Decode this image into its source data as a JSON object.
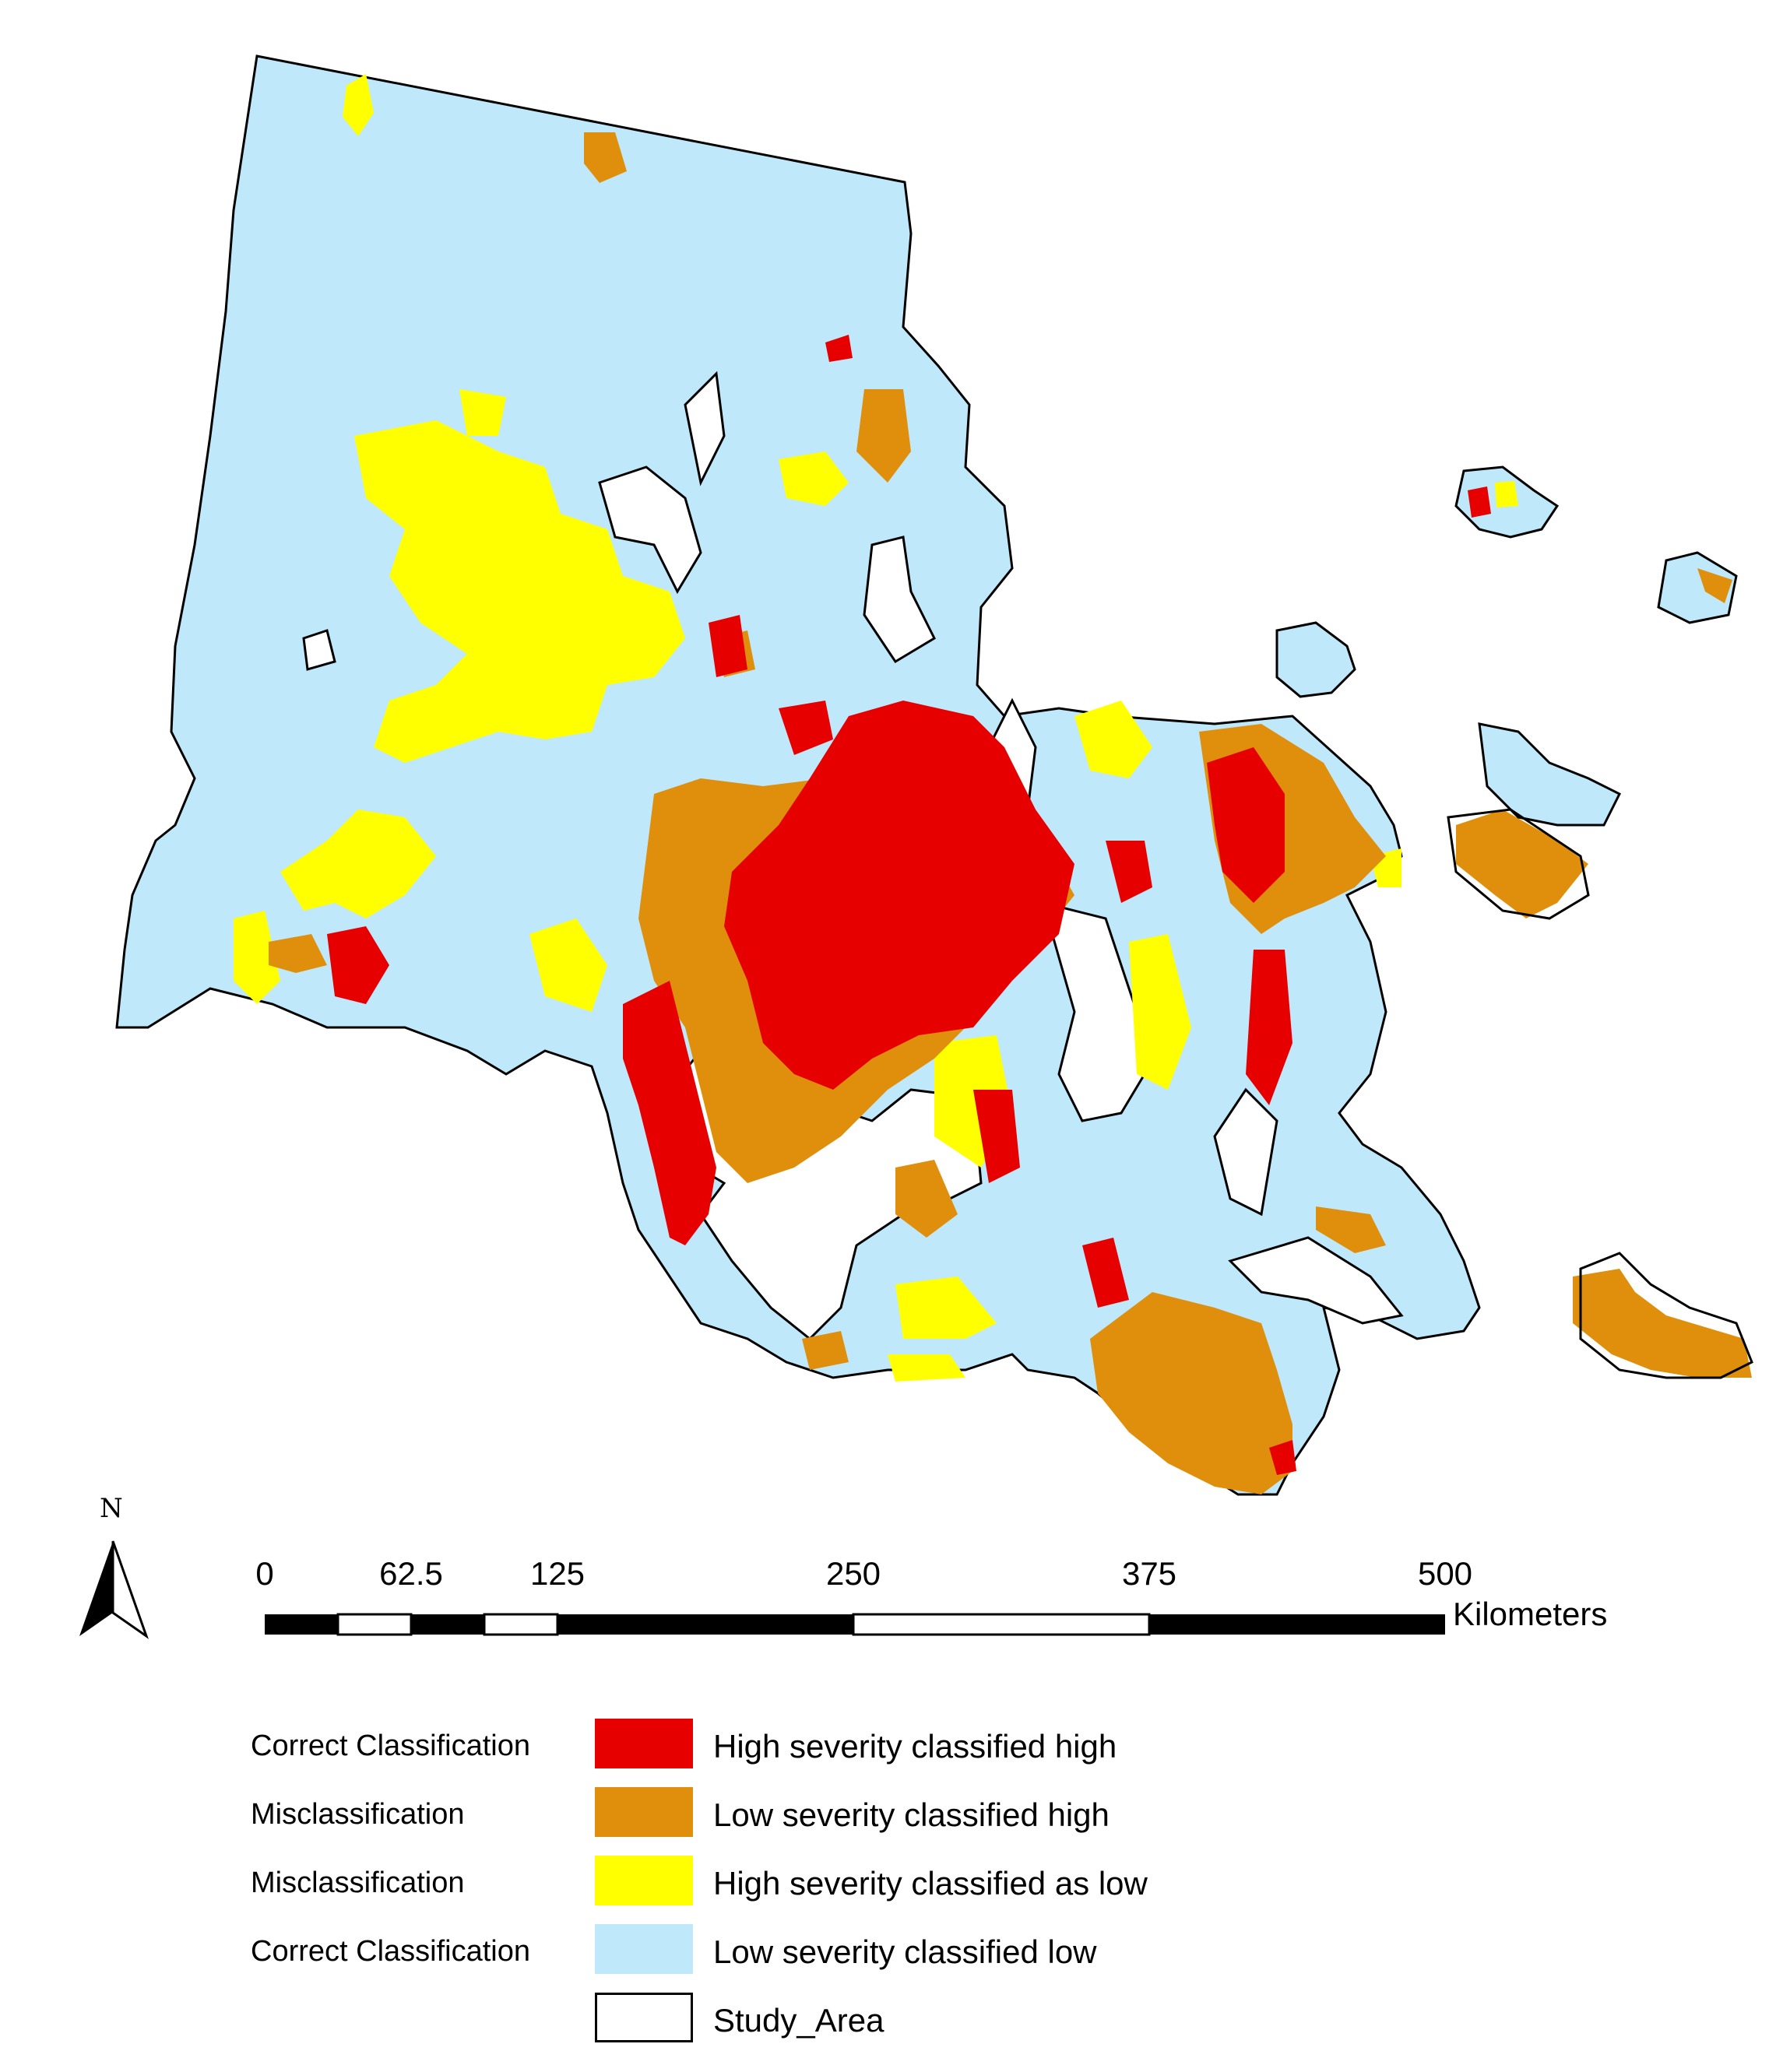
{
  "colors": {
    "high_high": "#e60000",
    "low_high": "#df8f0b",
    "high_low": "#ffff00",
    "low_low": "#bfe8fb",
    "outline": "#000000",
    "study_area": "#ffffff"
  },
  "north_arrow": {
    "label": "N"
  },
  "scale_bar": {
    "ticks": [
      "0",
      "62.5",
      "125",
      "250",
      "375",
      "500"
    ],
    "unit": "Kilometers"
  },
  "legend": [
    {
      "group": "Correct Classification",
      "label": "High severity classified high",
      "color": "#e60000"
    },
    {
      "group": "Misclassification",
      "label": "Low severity classified high",
      "color": "#df8f0b"
    },
    {
      "group": "Misclassification",
      "label": "High severity classified as low",
      "color": "#ffff00"
    },
    {
      "group": "Correct Classification",
      "label": "Low severity classified low",
      "color": "#bfe8fb"
    },
    {
      "group": "",
      "label": "Study_Area",
      "color": "#ffffff"
    }
  ]
}
